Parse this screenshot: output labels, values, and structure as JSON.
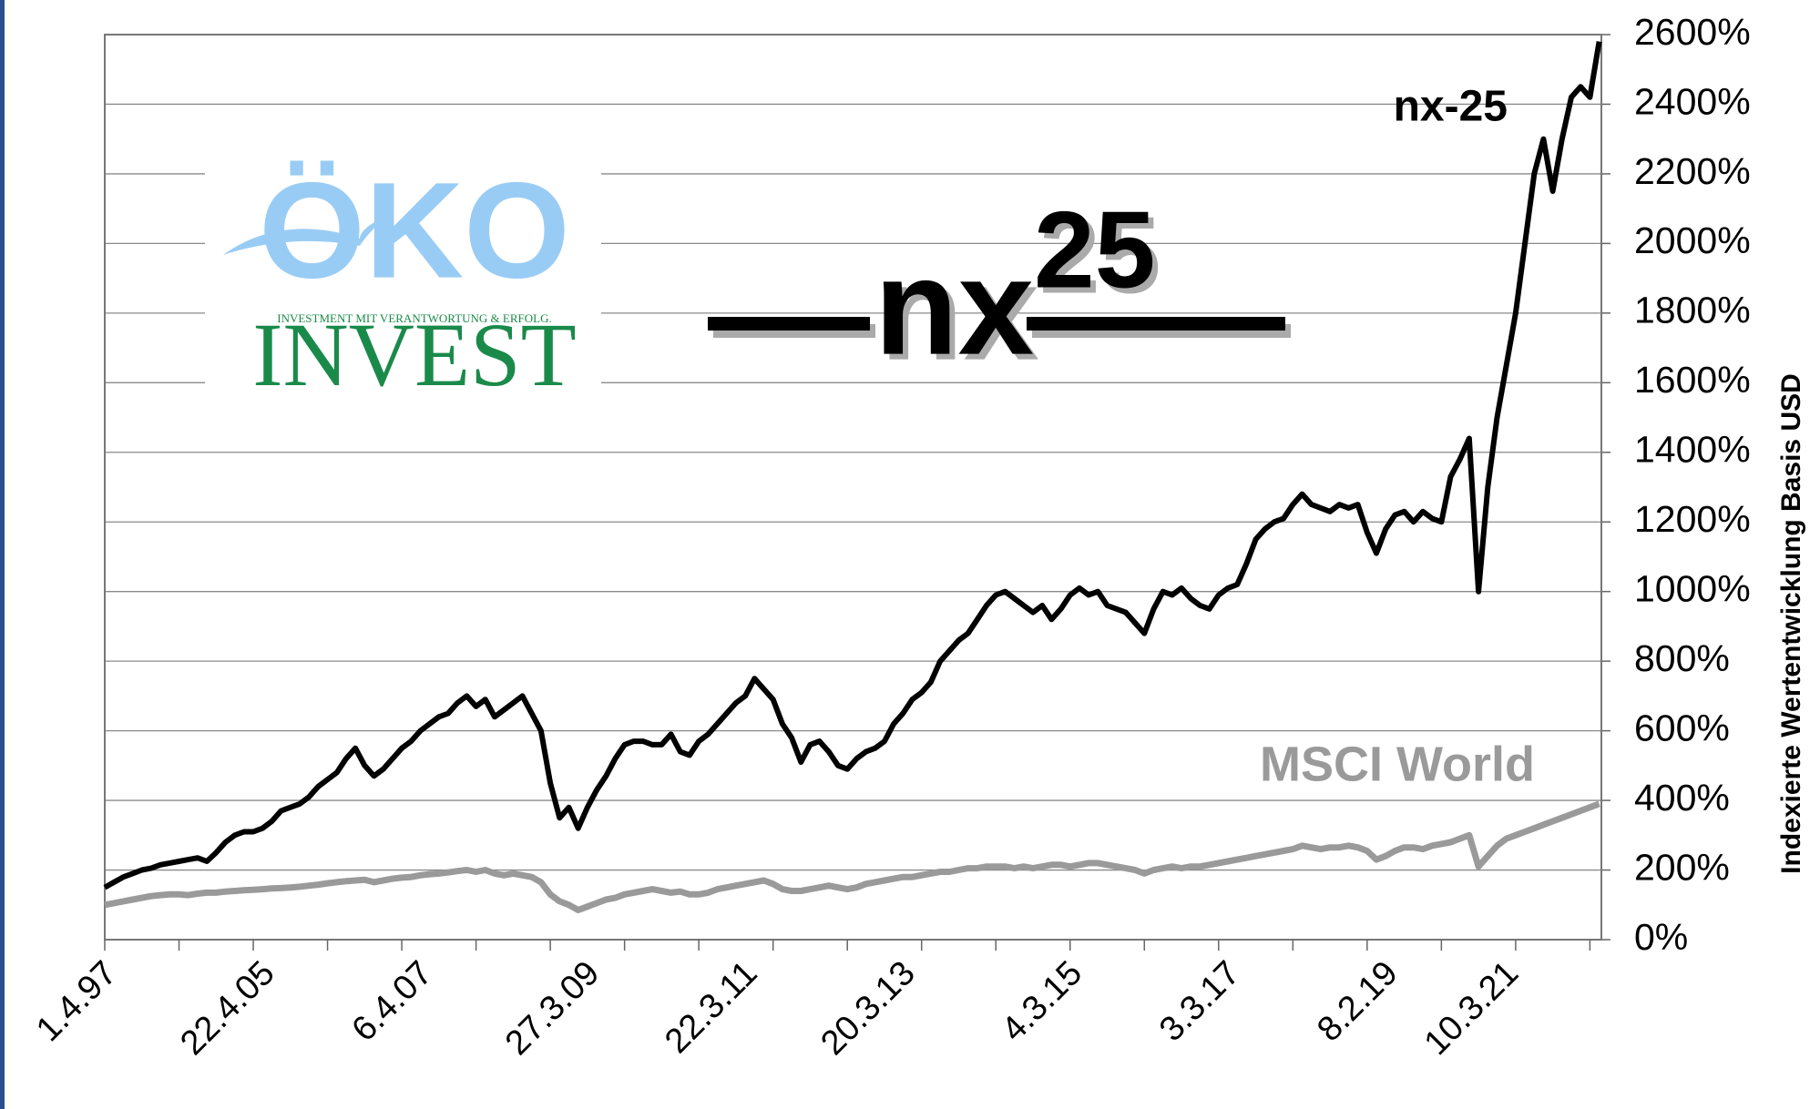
{
  "logo": {
    "brand": "ÖKO",
    "tagline": "INVESTMENT MIT VERANTWORTUNG & ERFOLG.",
    "name": "INVEST"
  },
  "product_logo": {
    "base": "nx",
    "superscript": "25"
  },
  "chart_data": {
    "type": "line",
    "y_axis_label": "Indexierte Wertentwicklung Basis USD",
    "annotations": [
      {
        "text": "nx-25",
        "series": 0
      },
      {
        "text": "MSCI World",
        "series": 1
      }
    ],
    "categories": [
      "1.4.97",
      null,
      null,
      null,
      null,
      null,
      null,
      null,
      null,
      null,
      null,
      null,
      null,
      null,
      null,
      null,
      null,
      "22.4.05",
      null,
      null,
      null,
      null,
      null,
      null,
      null,
      null,
      null,
      null,
      null,
      null,
      null,
      null,
      null,
      null,
      "6.4.07",
      null,
      null,
      null,
      null,
      null,
      null,
      null,
      null,
      null,
      null,
      null,
      null,
      null,
      null,
      null,
      null,
      null,
      "27.3.09",
      null,
      null,
      null,
      null,
      null,
      null,
      null,
      null,
      null,
      null,
      null,
      null,
      null,
      null,
      null,
      null,
      "22.3.11",
      null,
      null,
      null,
      null,
      null,
      null,
      null,
      null,
      null,
      null,
      null,
      null,
      null,
      null,
      null,
      null,
      "20.3.13",
      null,
      null,
      null,
      null,
      null,
      null,
      null,
      null,
      null,
      null,
      null,
      null,
      null,
      null,
      null,
      null,
      null,
      "4.3.15",
      null,
      null,
      null,
      null,
      null,
      null,
      null,
      null,
      null,
      null,
      null,
      null,
      null,
      null,
      null,
      null,
      "3.3.17",
      null,
      null,
      null,
      null,
      null,
      null,
      null,
      null,
      null,
      null,
      null,
      null,
      null,
      null,
      null,
      null,
      "8.2.19",
      null,
      null,
      null,
      null,
      null,
      null,
      null,
      null,
      null,
      null,
      null,
      null,
      "10.3.21",
      null,
      null,
      null,
      null,
      null,
      null,
      null,
      null,
      null,
      null
    ],
    "series": [
      {
        "name": "nx-25",
        "color": "#000000",
        "values": [
          150,
          165,
          180,
          190,
          200,
          205,
          215,
          220,
          225,
          230,
          235,
          225,
          250,
          280,
          300,
          310,
          310,
          320,
          340,
          370,
          380,
          390,
          410,
          440,
          460,
          480,
          520,
          550,
          500,
          470,
          490,
          520,
          550,
          570,
          600,
          620,
          640,
          650,
          680,
          700,
          670,
          690,
          640,
          660,
          680,
          700,
          650,
          600,
          450,
          350,
          380,
          320,
          380,
          430,
          470,
          520,
          560,
          570,
          570,
          560,
          560,
          590,
          540,
          530,
          570,
          590,
          620,
          650,
          680,
          700,
          750,
          720,
          690,
          620,
          580,
          510,
          560,
          570,
          540,
          500,
          490,
          520,
          540,
          550,
          570,
          620,
          650,
          690,
          710,
          740,
          800,
          830,
          860,
          880,
          920,
          960,
          990,
          1000,
          980,
          960,
          940,
          960,
          920,
          950,
          990,
          1010,
          990,
          1000,
          960,
          950,
          940,
          910,
          880,
          950,
          1000,
          990,
          1010,
          980,
          960,
          950,
          990,
          1010,
          1020,
          1080,
          1150,
          1180,
          1200,
          1210,
          1250,
          1280,
          1250,
          1240,
          1230,
          1250,
          1240,
          1250,
          1170,
          1110,
          1180,
          1220,
          1230,
          1200,
          1230,
          1210,
          1200,
          1330,
          1380,
          1440,
          1000,
          1300,
          1500,
          1650,
          1800,
          2000,
          2200,
          2300,
          2150,
          2300,
          2420,
          2450,
          2420,
          2580
        ]
      },
      {
        "name": "MSCI World",
        "color": "#9a9a9a",
        "values": [
          100,
          105,
          110,
          115,
          120,
          125,
          128,
          130,
          130,
          128,
          132,
          135,
          135,
          138,
          140,
          142,
          143,
          145,
          147,
          148,
          150,
          152,
          155,
          158,
          162,
          165,
          168,
          170,
          172,
          165,
          170,
          175,
          178,
          180,
          185,
          188,
          190,
          193,
          197,
          200,
          195,
          200,
          190,
          185,
          190,
          185,
          180,
          165,
          130,
          110,
          100,
          85,
          95,
          105,
          115,
          120,
          130,
          135,
          140,
          145,
          140,
          135,
          138,
          130,
          130,
          135,
          145,
          150,
          155,
          160,
          165,
          170,
          160,
          145,
          140,
          140,
          145,
          150,
          155,
          150,
          145,
          150,
          160,
          165,
          170,
          175,
          180,
          180,
          185,
          190,
          195,
          195,
          200,
          205,
          205,
          210,
          210,
          210,
          205,
          210,
          205,
          210,
          215,
          215,
          210,
          215,
          220,
          220,
          215,
          210,
          205,
          200,
          190,
          200,
          205,
          210,
          205,
          210,
          210,
          215,
          220,
          225,
          230,
          235,
          240,
          245,
          250,
          255,
          260,
          270,
          265,
          260,
          265,
          265,
          270,
          265,
          255,
          230,
          240,
          255,
          265,
          265,
          260,
          270,
          275,
          280,
          290,
          300,
          210,
          240,
          270,
          290,
          300,
          310,
          320,
          330,
          340,
          350,
          360,
          370,
          380,
          390
        ]
      }
    ],
    "ylim": [
      0,
      2600
    ],
    "yticks": [
      {
        "value": 0,
        "label": "0%"
      },
      {
        "value": 200,
        "label": "200%"
      },
      {
        "value": 400,
        "label": "400%"
      },
      {
        "value": 600,
        "label": "600%"
      },
      {
        "value": 800,
        "label": "800%"
      },
      {
        "value": 1000,
        "label": "1000%"
      },
      {
        "value": 1200,
        "label": "1200%"
      },
      {
        "value": 1400,
        "label": "1400%"
      },
      {
        "value": 1600,
        "label": "1600%"
      },
      {
        "value": 1800,
        "label": "1800%"
      },
      {
        "value": 2000,
        "label": "2000%"
      },
      {
        "value": 2200,
        "label": "2200%"
      },
      {
        "value": 2400,
        "label": "2400%"
      },
      {
        "value": 2600,
        "label": "2600%"
      }
    ],
    "grid": true,
    "y_axis_side": "right"
  }
}
